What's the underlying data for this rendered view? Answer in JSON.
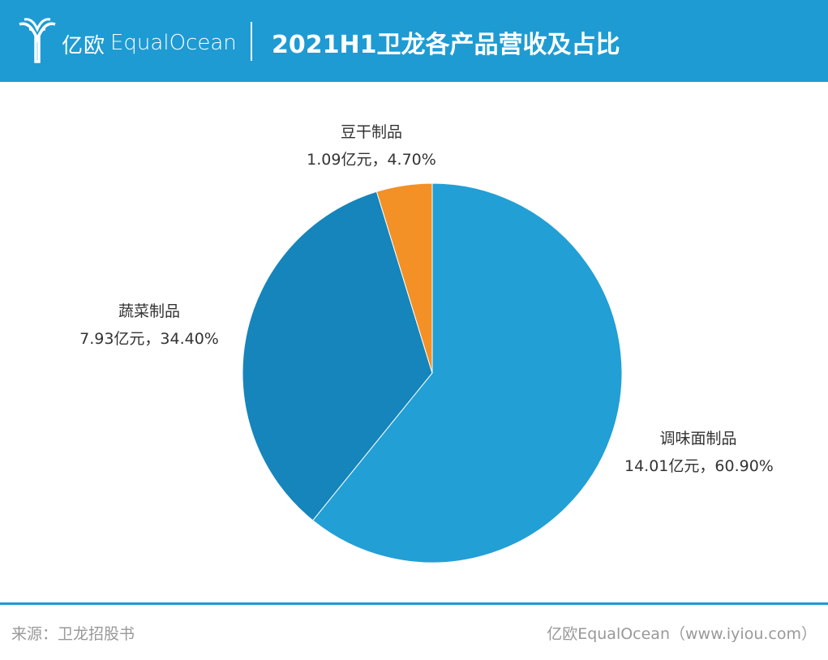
{
  "header": {
    "logo_cn": "亿欧",
    "logo_en": "EqualOcean",
    "title": "2021H1卫龙各产品营收及占比",
    "background_color": "#1e9bd3"
  },
  "chart_data": {
    "type": "pie",
    "title": "2021H1卫龙各产品营收及占比",
    "slices": [
      {
        "name": "调味面制品",
        "value": 14.01,
        "percent": 60.9,
        "label_value": "14.01亿元，60.90%",
        "color": "#229fd5"
      },
      {
        "name": "蔬菜制品",
        "value": 7.93,
        "percent": 34.4,
        "label_value": "7.93亿元，34.40%",
        "color": "#1585bb"
      },
      {
        "name": "豆干制品",
        "value": 1.09,
        "percent": 4.7,
        "label_value": "1.09亿元，4.70%",
        "color": "#f39026"
      }
    ],
    "start_angle_deg": 0,
    "direction": "clockwise",
    "grid": false,
    "legend": "none"
  },
  "footer": {
    "source": "来源：卫龙招股书",
    "brand": "亿欧EqualOcean（www.iyiou.com）",
    "line_color": "#1e9bd3"
  }
}
